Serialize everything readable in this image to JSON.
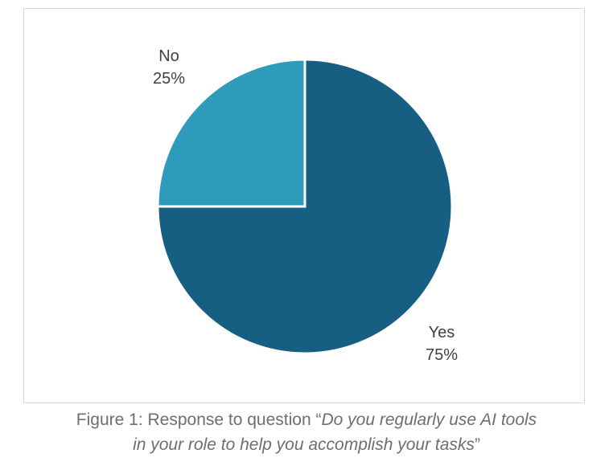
{
  "chart_data": {
    "type": "pie",
    "title": "",
    "slices": [
      {
        "category": "Yes",
        "value": 75,
        "percent_label": "75%",
        "color": "#175f82"
      },
      {
        "category": "No",
        "value": 25,
        "percent_label": "25%",
        "color": "#2e9bbb"
      }
    ],
    "start_angle_deg": 0,
    "direction": "clockwise",
    "slice_border_color": "#ffffff",
    "legend": "none"
  },
  "caption": {
    "prefix": "Figure 1: Response to question “",
    "italic_line1": "Do you regularly use AI tools",
    "italic_line2": "in your role to help you accomplish your tasks",
    "suffix": "”"
  }
}
